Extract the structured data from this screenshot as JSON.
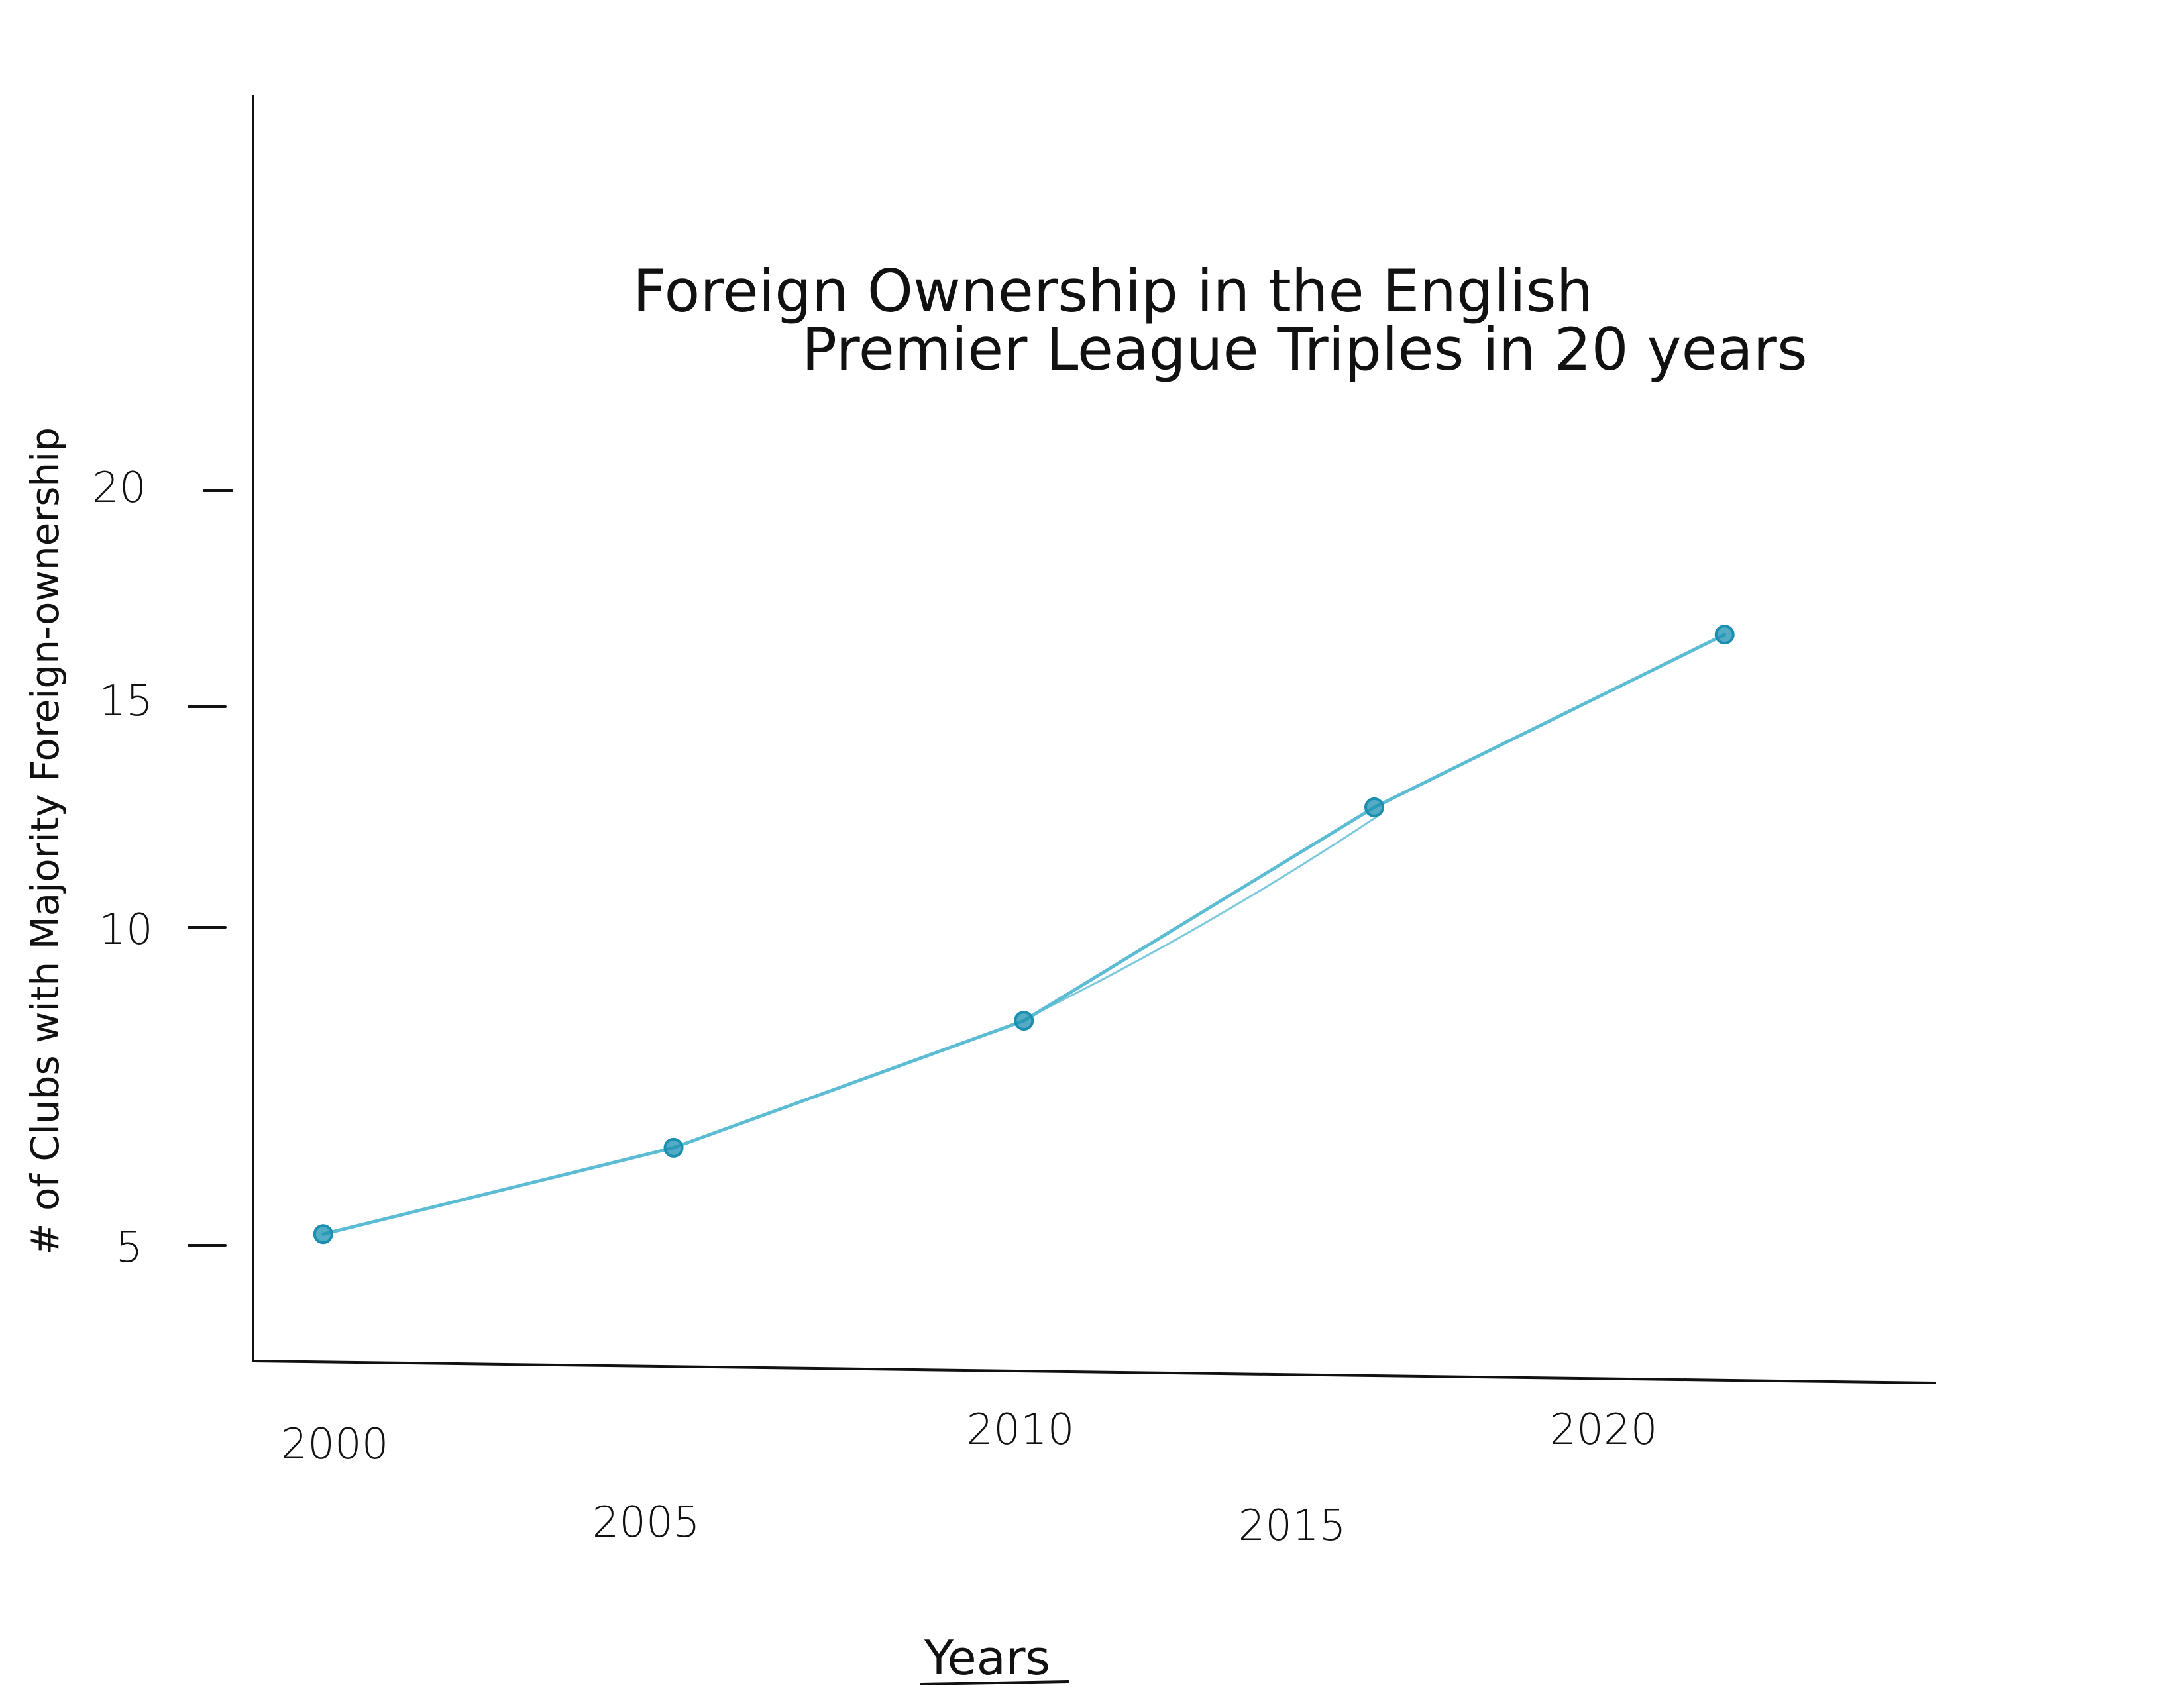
{
  "chart_data": {
    "type": "line",
    "title_lines": [
      "Foreign Ownership in the English",
      "Premier League Triples in 20 years"
    ],
    "xlabel": "Years",
    "ylabel": "# of Clubs with Majority Foreign-ownership",
    "x_ticks": [
      "2000",
      "2005",
      "2010",
      "2015",
      "2020"
    ],
    "y_ticks": [
      "5",
      "10",
      "15",
      "20"
    ],
    "series": [
      {
        "x": [
          2000,
          2005,
          2010,
          2015,
          2020
        ],
        "values": [
          5.9,
          7.6,
          10.1,
          14.3,
          17.7
        ]
      }
    ],
    "xlim": [
      1999,
      2023
    ],
    "ylim": [
      3.4,
      28.3
    ],
    "grid": false,
    "line_color": "#5bbcd4",
    "marker_color": "#1a8fb0",
    "axis_color": "#111111"
  }
}
